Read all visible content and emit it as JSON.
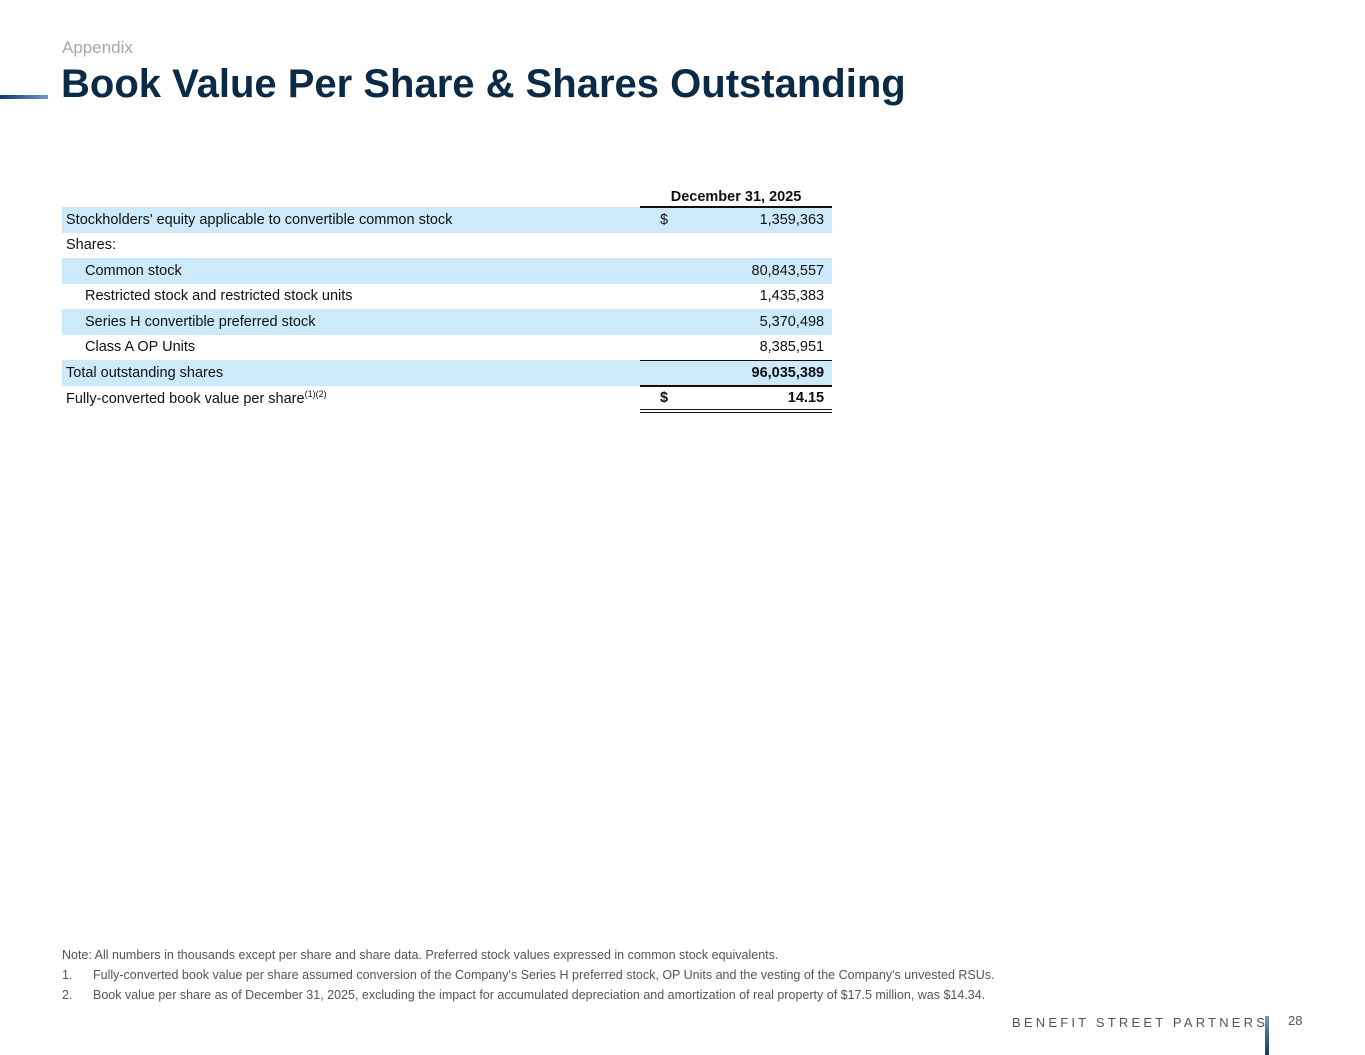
{
  "header": {
    "section": "Appendix",
    "title": "Book Value Per Share & Shares Outstanding"
  },
  "table": {
    "column_header": "December 31, 2025",
    "rows": [
      {
        "label": "Stockholders' equity applicable to convertible common stock",
        "currency": "$",
        "value": "1,359,363"
      },
      {
        "label": "Shares:",
        "currency": "",
        "value": ""
      },
      {
        "label": "Common stock",
        "currency": "",
        "value": "80,843,557"
      },
      {
        "label": "Restricted stock and restricted stock units",
        "currency": "",
        "value": "1,435,383"
      },
      {
        "label": "Series H convertible preferred stock",
        "currency": "",
        "value": "5,370,498"
      },
      {
        "label": "Class A OP Units",
        "currency": "",
        "value": "8,385,951"
      },
      {
        "label": "Total outstanding shares",
        "currency": "",
        "value": "96,035,389"
      },
      {
        "label": "Fully-converted book value per share",
        "sup": "(1)(2)",
        "currency": "$",
        "value": "14.15"
      }
    ]
  },
  "notes": {
    "note": "Note: All numbers in thousands except per share and share data. Preferred stock values expressed in common stock equivalents.",
    "items": [
      {
        "num": "1.",
        "text": "Fully-converted book value per share assumed conversion of the Company's Series H preferred stock, OP Units and the vesting of the Company's unvested RSUs."
      },
      {
        "num": "2.",
        "text": "Book value per share as of December 31, 2025, excluding the impact for accumulated depreciation and amortization of real property of $17.5 million, was $14.34."
      }
    ]
  },
  "footer": {
    "brand": "BENEFIT STREET PARTNERS",
    "page": "28"
  }
}
